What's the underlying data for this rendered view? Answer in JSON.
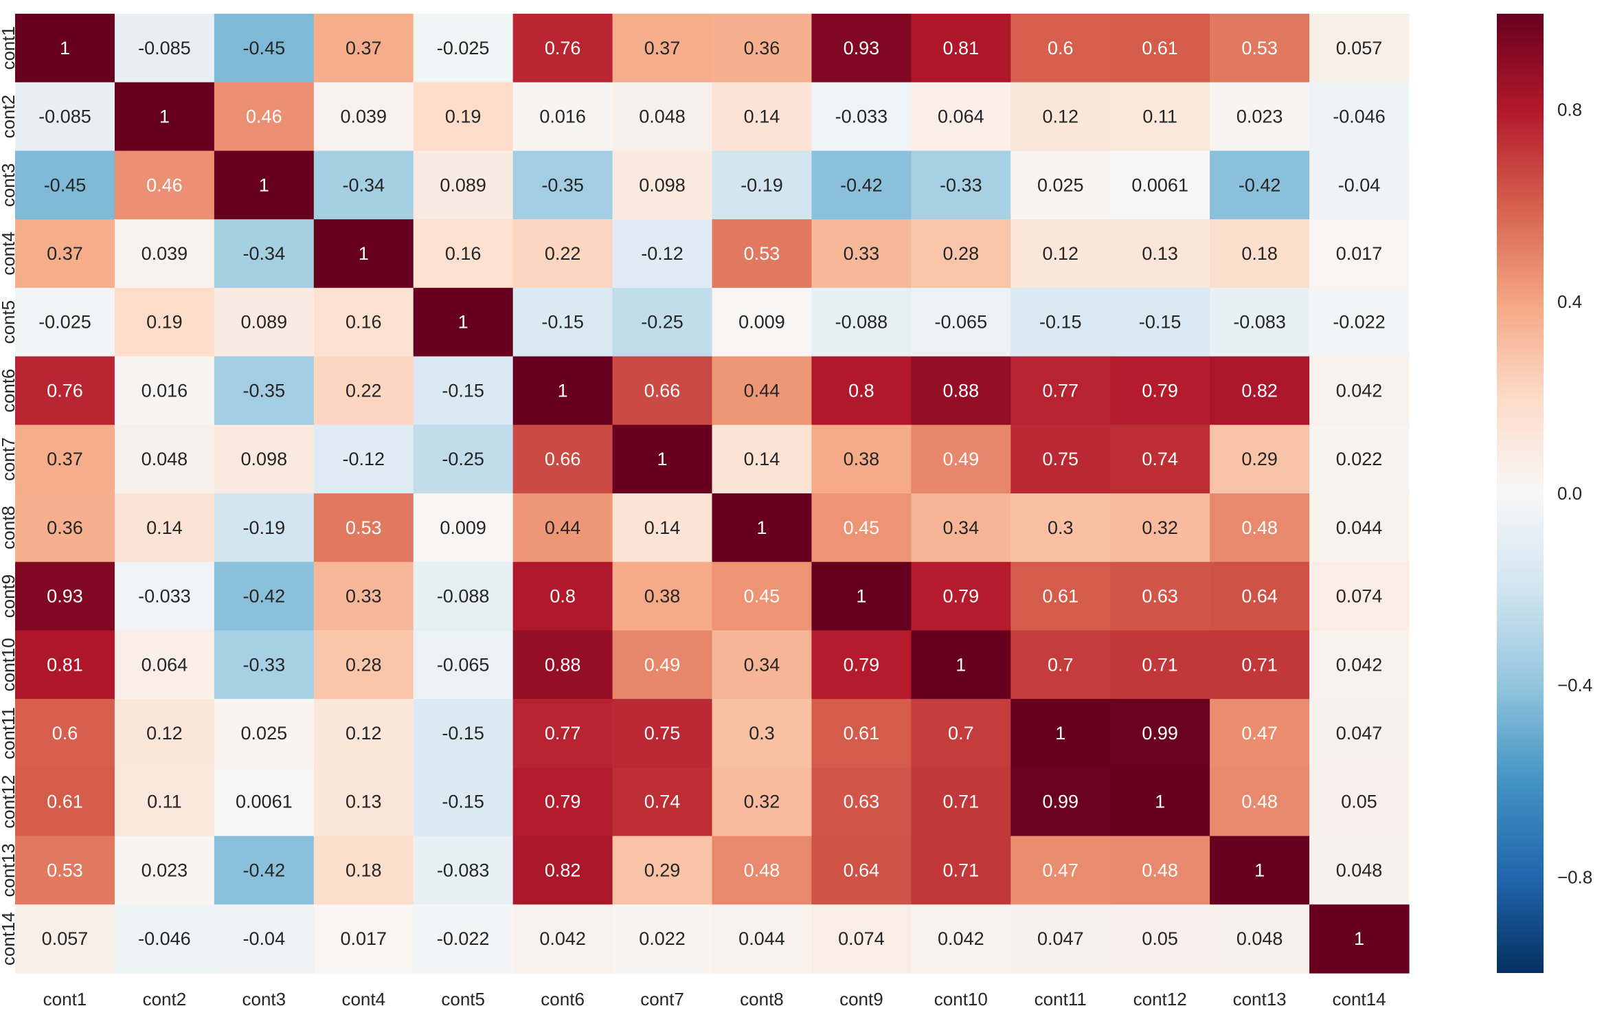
{
  "chart_data": {
    "type": "heatmap",
    "title": "",
    "xlabel": "",
    "ylabel": "",
    "colormap": "RdBu_r",
    "vmin": -1,
    "vmax": 1,
    "colorbar_ticks": [
      0.8,
      0.4,
      0.0,
      -0.4,
      -0.8
    ],
    "colorbar_tick_labels": [
      "0.8",
      "0.4",
      "0.0",
      "−0.4",
      "−0.8"
    ],
    "row_labels": [
      "cont1",
      "cont2",
      "cont3",
      "cont4",
      "cont5",
      "cont6",
      "cont7",
      "cont8",
      "cont9",
      "cont10",
      "cont11",
      "cont12",
      "cont13",
      "cont14"
    ],
    "col_labels": [
      "cont1",
      "cont2",
      "cont3",
      "cont4",
      "cont5",
      "cont6",
      "cont7",
      "cont8",
      "cont9",
      "cont10",
      "cont11",
      "cont12",
      "cont13",
      "cont14"
    ],
    "values": [
      [
        1,
        -0.085,
        -0.45,
        0.37,
        -0.025,
        0.76,
        0.37,
        0.36,
        0.93,
        0.81,
        0.6,
        0.61,
        0.53,
        0.057
      ],
      [
        -0.085,
        1,
        0.46,
        0.039,
        0.19,
        0.016,
        0.048,
        0.14,
        -0.033,
        0.064,
        0.12,
        0.11,
        0.023,
        -0.046
      ],
      [
        -0.45,
        0.46,
        1,
        -0.34,
        0.089,
        -0.35,
        0.098,
        -0.19,
        -0.42,
        -0.33,
        0.025,
        0.0061,
        -0.42,
        -0.04
      ],
      [
        0.37,
        0.039,
        -0.34,
        1,
        0.16,
        0.22,
        -0.12,
        0.53,
        0.33,
        0.28,
        0.12,
        0.13,
        0.18,
        0.017
      ],
      [
        -0.025,
        0.19,
        0.089,
        0.16,
        1,
        -0.15,
        -0.25,
        0.009,
        -0.088,
        -0.065,
        -0.15,
        -0.15,
        -0.083,
        -0.022
      ],
      [
        0.76,
        0.016,
        -0.35,
        0.22,
        -0.15,
        1,
        0.66,
        0.44,
        0.8,
        0.88,
        0.77,
        0.79,
        0.82,
        0.042
      ],
      [
        0.37,
        0.048,
        0.098,
        -0.12,
        -0.25,
        0.66,
        1,
        0.14,
        0.38,
        0.49,
        0.75,
        0.74,
        0.29,
        0.022
      ],
      [
        0.36,
        0.14,
        -0.19,
        0.53,
        0.009,
        0.44,
        0.14,
        1,
        0.45,
        0.34,
        0.3,
        0.32,
        0.48,
        0.044
      ],
      [
        0.93,
        -0.033,
        -0.42,
        0.33,
        -0.088,
        0.8,
        0.38,
        0.45,
        1,
        0.79,
        0.61,
        0.63,
        0.64,
        0.074
      ],
      [
        0.81,
        0.064,
        -0.33,
        0.28,
        -0.065,
        0.88,
        0.49,
        0.34,
        0.79,
        1,
        0.7,
        0.71,
        0.71,
        0.042
      ],
      [
        0.6,
        0.12,
        0.025,
        0.12,
        -0.15,
        0.77,
        0.75,
        0.3,
        0.61,
        0.7,
        1,
        0.99,
        0.47,
        0.047
      ],
      [
        0.61,
        0.11,
        0.0061,
        0.13,
        -0.15,
        0.79,
        0.74,
        0.32,
        0.63,
        0.71,
        0.99,
        1,
        0.48,
        0.05
      ],
      [
        0.53,
        0.023,
        -0.42,
        0.18,
        -0.083,
        0.82,
        0.29,
        0.48,
        0.64,
        0.71,
        0.47,
        0.48,
        1,
        0.048
      ],
      [
        0.057,
        -0.046,
        -0.04,
        0.017,
        -0.022,
        0.042,
        0.022,
        0.044,
        0.074,
        0.042,
        0.047,
        0.05,
        0.048,
        1
      ]
    ],
    "annotations": [
      [
        "1",
        "-0.085",
        "-0.45",
        "0.37",
        "-0.025",
        "0.76",
        "0.37",
        "0.36",
        "0.93",
        "0.81",
        "0.6",
        "0.61",
        "0.53",
        "0.057"
      ],
      [
        "-0.085",
        "1",
        "0.46",
        "0.039",
        "0.19",
        "0.016",
        "0.048",
        "0.14",
        "-0.033",
        "0.064",
        "0.12",
        "0.11",
        "0.023",
        "-0.046"
      ],
      [
        "-0.45",
        "0.46",
        "1",
        "-0.34",
        "0.089",
        "-0.35",
        "0.098",
        "-0.19",
        "-0.42",
        "-0.33",
        "0.025",
        "0.0061",
        "-0.42",
        "-0.04"
      ],
      [
        "0.37",
        "0.039",
        "-0.34",
        "1",
        "0.16",
        "0.22",
        "-0.12",
        "0.53",
        "0.33",
        "0.28",
        "0.12",
        "0.13",
        "0.18",
        "0.017"
      ],
      [
        "-0.025",
        "0.19",
        "0.089",
        "0.16",
        "1",
        "-0.15",
        "-0.25",
        "0.009",
        "-0.088",
        "-0.065",
        "-0.15",
        "-0.15",
        "-0.083",
        "-0.022"
      ],
      [
        "0.76",
        "0.016",
        "-0.35",
        "0.22",
        "-0.15",
        "1",
        "0.66",
        "0.44",
        "0.8",
        "0.88",
        "0.77",
        "0.79",
        "0.82",
        "0.042"
      ],
      [
        "0.37",
        "0.048",
        "0.098",
        "-0.12",
        "-0.25",
        "0.66",
        "1",
        "0.14",
        "0.38",
        "0.49",
        "0.75",
        "0.74",
        "0.29",
        "0.022"
      ],
      [
        "0.36",
        "0.14",
        "-0.19",
        "0.53",
        "0.009",
        "0.44",
        "0.14",
        "1",
        "0.45",
        "0.34",
        "0.3",
        "0.32",
        "0.48",
        "0.044"
      ],
      [
        "0.93",
        "-0.033",
        "-0.42",
        "0.33",
        "-0.088",
        "0.8",
        "0.38",
        "0.45",
        "1",
        "0.79",
        "0.61",
        "0.63",
        "0.64",
        "0.074"
      ],
      [
        "0.81",
        "0.064",
        "-0.33",
        "0.28",
        "-0.065",
        "0.88",
        "0.49",
        "0.34",
        "0.79",
        "1",
        "0.7",
        "0.71",
        "0.71",
        "0.042"
      ],
      [
        "0.6",
        "0.12",
        "0.025",
        "0.12",
        "-0.15",
        "0.77",
        "0.75",
        "0.3",
        "0.61",
        "0.7",
        "1",
        "0.99",
        "0.47",
        "0.047"
      ],
      [
        "0.61",
        "0.11",
        "0.0061",
        "0.13",
        "-0.15",
        "0.79",
        "0.74",
        "0.32",
        "0.63",
        "0.71",
        "0.99",
        "1",
        "0.48",
        "0.05"
      ],
      [
        "0.53",
        "0.023",
        "-0.42",
        "0.18",
        "-0.083",
        "0.82",
        "0.29",
        "0.48",
        "0.64",
        "0.71",
        "0.47",
        "0.48",
        "1",
        "0.048"
      ],
      [
        "0.057",
        "-0.046",
        "-0.04",
        "0.017",
        "-0.022",
        "0.042",
        "0.022",
        "0.044",
        "0.074",
        "0.042",
        "0.047",
        "0.05",
        "0.048",
        "1"
      ]
    ],
    "grid": false,
    "legend": "colorbar-right"
  }
}
